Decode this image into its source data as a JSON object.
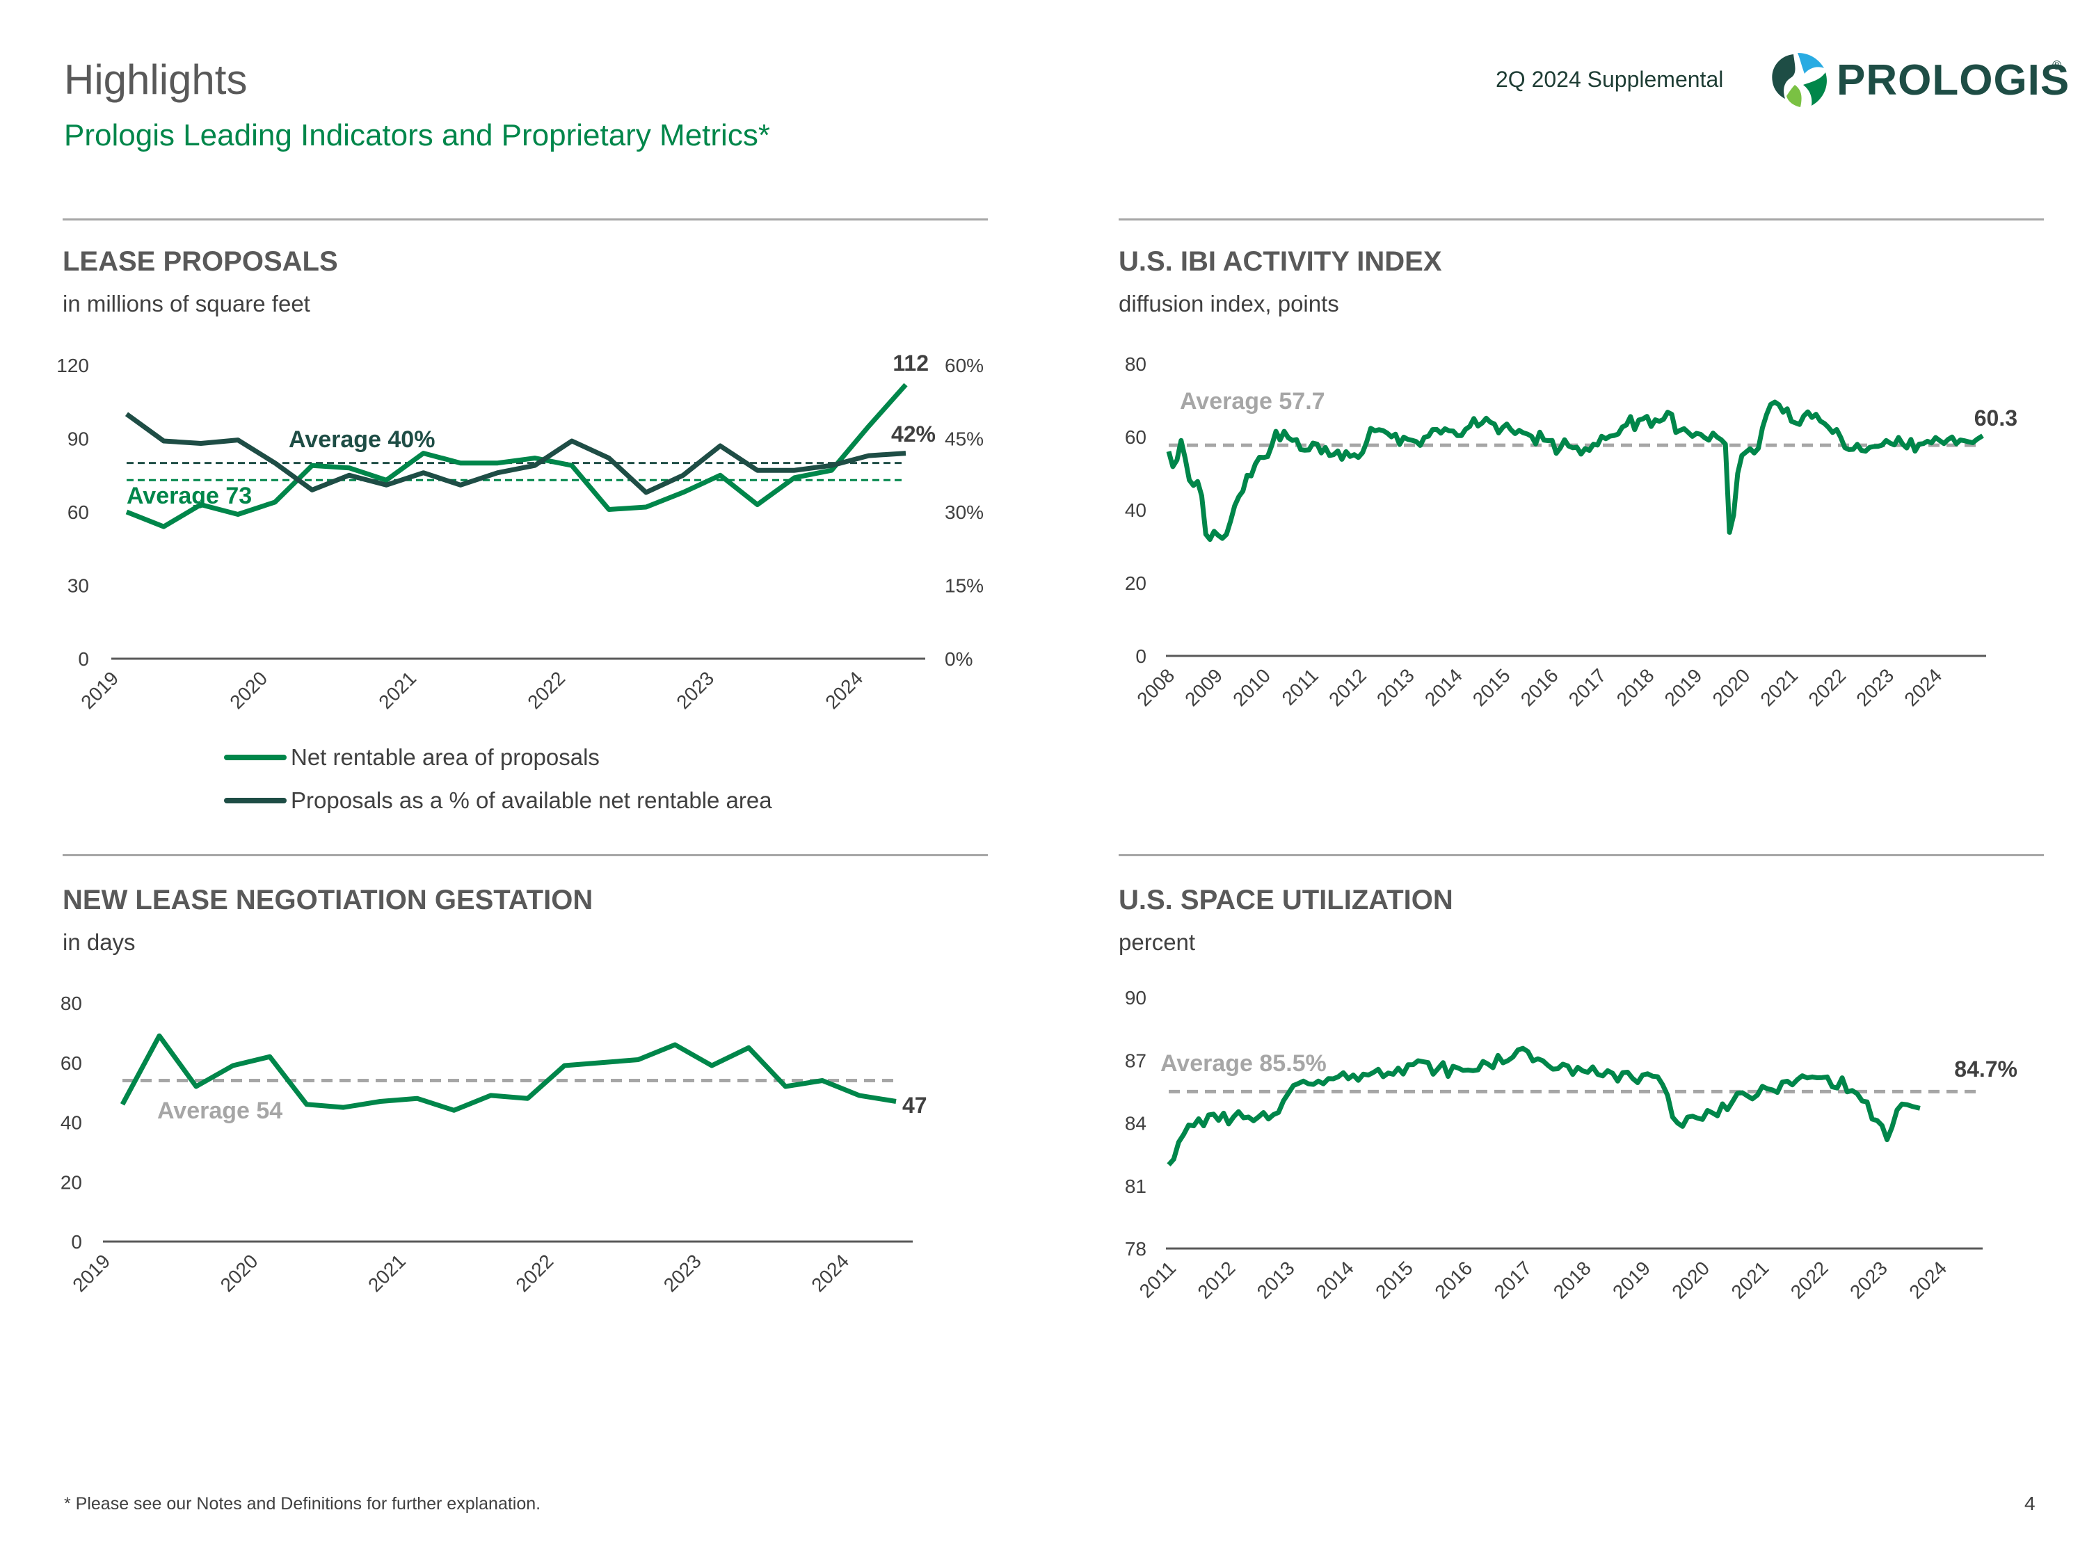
{
  "header": {
    "title": "Highlights",
    "subtitle": "Prologis Leading Indicators and Proprietary Metrics*",
    "supplemental": "2Q 2024 Supplemental",
    "logo_bold": "PRO",
    "logo_light": "LOGIS",
    "logo_reg": "®"
  },
  "colors": {
    "green": "#00864a",
    "dark": "#1e4d45",
    "gray": "#a6a6a6",
    "avg_text": "#a6a6a6"
  },
  "sections": {
    "lease": {
      "title": "LEASE PROPOSALS",
      "subtitle": "in millions of square feet"
    },
    "ibi": {
      "title": "U.S. IBI ACTIVITY INDEX",
      "subtitle": "diffusion index, points"
    },
    "gestation": {
      "title": "NEW LEASE NEGOTIATION GESTATION",
      "subtitle": "in days"
    },
    "util": {
      "title": "U.S. SPACE UTILIZATION",
      "subtitle": "percent"
    }
  },
  "legend": {
    "net_area": "Net rentable area of proposals",
    "pct_available": "Proposals as a % of available net rentable area"
  },
  "footer": {
    "note": "* Please see our Notes and Definitions for further explanation.",
    "page": "4"
  },
  "chart_data": [
    {
      "id": "lease",
      "type": "line",
      "title": "LEASE PROPOSALS",
      "ylabel": "in millions of square feet",
      "ylim": [
        0,
        120
      ],
      "yticks": [
        "0",
        "30",
        "60",
        "90",
        "120"
      ],
      "ylim2": [
        0,
        60
      ],
      "yticks2": [
        "0%",
        "15%",
        "30%",
        "45%",
        "60%"
      ],
      "xticks": [
        "2019",
        "2020",
        "2021",
        "2022",
        "2023",
        "2024"
      ],
      "x_start": 2019.0,
      "x_end": 2024.33,
      "series": [
        {
          "name": "Net rentable area of proposals",
          "axis": "left",
          "values": [
            60,
            54,
            63,
            59,
            64,
            79,
            78,
            73,
            84,
            80,
            80,
            82,
            79,
            61,
            62,
            68,
            75,
            63,
            74,
            77,
            95,
            112
          ]
        },
        {
          "name": "Proposals as a % of available net rentable area",
          "axis": "right",
          "values": [
            50,
            44.5,
            44,
            44.7,
            40,
            34.5,
            37.5,
            35.5,
            38,
            35.5,
            38,
            39.5,
            44.5,
            41,
            34,
            37.5,
            43.5,
            38.5,
            38.5,
            39.5,
            41.5,
            42
          ]
        }
      ],
      "averages": [
        {
          "label": "Average 73",
          "value": 73,
          "axis": "left"
        },
        {
          "label": "Average 40%",
          "value": 40,
          "axis": "right"
        }
      ],
      "end_labels": [
        "112",
        "42%"
      ]
    },
    {
      "id": "ibi",
      "type": "line",
      "title": "U.S. IBI ACTIVITY INDEX",
      "ylabel": "diffusion index, points",
      "ylim": [
        0,
        80
      ],
      "yticks": [
        "0",
        "20",
        "40",
        "60",
        "80"
      ],
      "xticks": [
        "2008",
        "2009",
        "2010",
        "2011",
        "2012",
        "2013",
        "2014",
        "2015",
        "2016",
        "2017",
        "2018",
        "2019",
        "2020",
        "2021",
        "2022",
        "2023",
        "2024"
      ],
      "x_start": 2008.0,
      "x_end": 2024.45,
      "keyframes": [
        [
          2008.0,
          56
        ],
        [
          2008.1,
          51
        ],
        [
          2008.25,
          59
        ],
        [
          2008.45,
          46
        ],
        [
          2008.6,
          48
        ],
        [
          2008.8,
          31
        ],
        [
          2008.95,
          35
        ],
        [
          2009.05,
          31
        ],
        [
          2009.3,
          40
        ],
        [
          2009.6,
          50
        ],
        [
          2009.9,
          54
        ],
        [
          2010.1,
          58
        ],
        [
          2010.3,
          62
        ],
        [
          2010.5,
          59
        ],
        [
          2010.7,
          56
        ],
        [
          2011.0,
          58
        ],
        [
          2011.3,
          55
        ],
        [
          2011.6,
          56
        ],
        [
          2011.9,
          55
        ],
        [
          2012.1,
          63
        ],
        [
          2012.5,
          60
        ],
        [
          2012.9,
          59
        ],
        [
          2013.2,
          60
        ],
        [
          2013.5,
          61
        ],
        [
          2013.8,
          60
        ],
        [
          2014.1,
          63
        ],
        [
          2014.5,
          64
        ],
        [
          2014.9,
          62
        ],
        [
          2015.2,
          61
        ],
        [
          2015.6,
          59
        ],
        [
          2015.9,
          57
        ],
        [
          2016.2,
          57
        ],
        [
          2016.6,
          58
        ],
        [
          2016.9,
          60
        ],
        [
          2017.2,
          63
        ],
        [
          2017.6,
          65
        ],
        [
          2017.9,
          64
        ],
        [
          2018.1,
          67
        ],
        [
          2018.3,
          62
        ],
        [
          2018.6,
          60
        ],
        [
          2018.9,
          59
        ],
        [
          2019.1,
          60
        ],
        [
          2019.25,
          58
        ],
        [
          2019.35,
          29
        ],
        [
          2019.5,
          50
        ],
        [
          2019.7,
          57
        ],
        [
          2019.9,
          56
        ],
        [
          2020.15,
          69
        ],
        [
          2020.4,
          67
        ],
        [
          2020.6,
          64
        ],
        [
          2020.9,
          67
        ],
        [
          2021.2,
          64
        ],
        [
          2021.5,
          62
        ],
        [
          2021.7,
          56
        ],
        [
          2021.9,
          58
        ],
        [
          2022.2,
          57
        ],
        [
          2022.5,
          59
        ],
        [
          2022.8,
          58
        ],
        [
          2023.2,
          58
        ],
        [
          2023.6,
          59
        ],
        [
          2023.9,
          58
        ],
        [
          2024.1,
          59
        ],
        [
          2024.3,
          59
        ],
        [
          2024.45,
          60.3
        ]
      ],
      "average": {
        "label": "Average 57.7",
        "value": 57.7
      },
      "end_label": "60.3"
    },
    {
      "id": "gestation",
      "type": "line",
      "title": "NEW LEASE NEGOTIATION GESTATION",
      "ylabel": "in days",
      "ylim": [
        0,
        80
      ],
      "yticks": [
        "0",
        "20",
        "40",
        "60",
        "80"
      ],
      "xticks": [
        "2019",
        "2020",
        "2021",
        "2022",
        "2023",
        "2024"
      ],
      "x_start": 2019.0,
      "x_end": 2024.25,
      "values": [
        46,
        69,
        52,
        59,
        62,
        46,
        45,
        47,
        48,
        44,
        49,
        48,
        59,
        60,
        61,
        66,
        59,
        65,
        52,
        54,
        49,
        47
      ],
      "average": {
        "label": "Average 54",
        "value": 54
      },
      "end_label": "47"
    },
    {
      "id": "util",
      "type": "line",
      "title": "U.S. SPACE UTILIZATION",
      "ylabel": "percent",
      "ylim": [
        78,
        90
      ],
      "yticks": [
        "78",
        "81",
        "84",
        "87",
        "90"
      ],
      "xticks": [
        "2011",
        "2012",
        "2013",
        "2014",
        "2015",
        "2016",
        "2017",
        "2018",
        "2019",
        "2020",
        "2021",
        "2022",
        "2023",
        "2024"
      ],
      "x_start": 2011.0,
      "x_end": 2024.55,
      "keyframes": [
        [
          2011.0,
          82
        ],
        [
          2011.2,
          83.3
        ],
        [
          2011.5,
          84.2
        ],
        [
          2011.8,
          84.1
        ],
        [
          2012.1,
          84.3
        ],
        [
          2012.4,
          84.1
        ],
        [
          2012.7,
          84.2
        ],
        [
          2012.9,
          85.0
        ],
        [
          2013.2,
          86.0
        ],
        [
          2013.5,
          86.0
        ],
        [
          2013.8,
          86.2
        ],
        [
          2014.1,
          86.3
        ],
        [
          2014.4,
          86.4
        ],
        [
          2014.8,
          86.6
        ],
        [
          2015.1,
          86.8
        ],
        [
          2015.5,
          86.6
        ],
        [
          2015.9,
          86.5
        ],
        [
          2016.3,
          86.8
        ],
        [
          2016.7,
          87.0
        ],
        [
          2016.9,
          87.6
        ],
        [
          2017.2,
          87.0
        ],
        [
          2017.6,
          86.8
        ],
        [
          2017.9,
          86.5
        ],
        [
          2018.2,
          86.3
        ],
        [
          2018.5,
          86.0
        ],
        [
          2018.9,
          86.3
        ],
        [
          2019.2,
          86.2
        ],
        [
          2019.5,
          84.0
        ],
        [
          2019.8,
          84.2
        ],
        [
          2020.1,
          84.5
        ],
        [
          2020.4,
          85.0
        ],
        [
          2020.8,
          85.3
        ],
        [
          2021.1,
          85.6
        ],
        [
          2021.4,
          85.8
        ],
        [
          2021.7,
          86.2
        ],
        [
          2022.0,
          86.2
        ],
        [
          2022.4,
          85.6
        ],
        [
          2022.6,
          85.0
        ],
        [
          2022.8,
          84.3
        ],
        [
          2023.0,
          83.2
        ],
        [
          2023.15,
          84.6
        ],
        [
          2023.35,
          84.9
        ],
        [
          2023.55,
          84.7
        ]
      ],
      "average": {
        "label": "Average 85.5%",
        "value": 85.5
      },
      "end_label": "84.7%"
    }
  ]
}
